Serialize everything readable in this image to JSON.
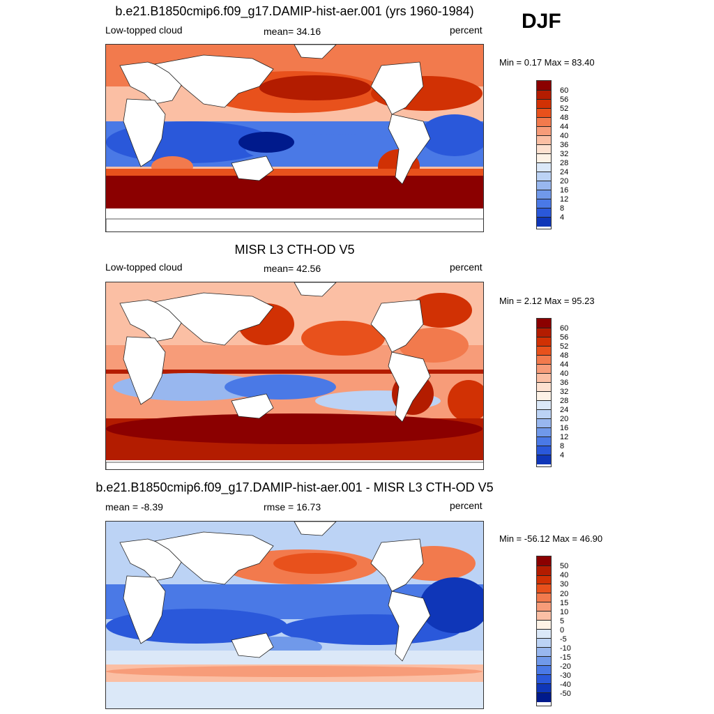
{
  "season": "DJF",
  "colors": {
    "abs_scale": [
      "#8b0000",
      "#b31c00",
      "#d13104",
      "#e8511c",
      "#f27a4d",
      "#f79c79",
      "#fbbfa4",
      "#fde1d0",
      "#fdf2e6",
      "#dbe8f8",
      "#bcd3f5",
      "#98b7ef",
      "#7099ea",
      "#4a79e6",
      "#2a58da",
      "#0f36b8",
      "#001a8c",
      "#000a6a"
    ],
    "diff_scale": [
      "#8b0000",
      "#b31c00",
      "#d13104",
      "#e8511c",
      "#f27a4d",
      "#f79c79",
      "#fbbfa4",
      "#fdf2e6",
      "#dbe8f8",
      "#bcd3f5",
      "#98b7ef",
      "#7099ea",
      "#4a79e6",
      "#2a58da",
      "#0f36b8",
      "#001a8c",
      "#000a6a"
    ]
  },
  "panels": [
    {
      "title": "b.e21.B1850cmip6.f09_g17.DAMIP-hist-aer.001 (yrs 1960-1984)",
      "left_label": "Low-topped cloud",
      "center_label": "mean=  34.16",
      "units": "percent",
      "minmax": "Min =   0.17 Max =  83.40",
      "colorbar_labels": [
        "60",
        "56",
        "52",
        "48",
        "44",
        "40",
        "36",
        "32",
        "28",
        "24",
        "20",
        "16",
        "12",
        "8",
        "4"
      ],
      "map_kind": "model"
    },
    {
      "title": "MISR L3 CTH-OD V5",
      "left_label": "Low-topped cloud",
      "center_label": "mean=  42.56",
      "units": "percent",
      "minmax": "Min =   2.12 Max =  95.23",
      "colorbar_labels": [
        "60",
        "56",
        "52",
        "48",
        "44",
        "40",
        "36",
        "32",
        "28",
        "24",
        "20",
        "16",
        "12",
        "8",
        "4"
      ],
      "map_kind": "obs"
    },
    {
      "title": "b.e21.B1850cmip6.f09_g17.DAMIP-hist-aer.001 - MISR L3 CTH-OD V5",
      "left_label": "mean =  -8.39",
      "center_label": "rmse =  16.73",
      "units": "percent",
      "minmax": "Min = -56.12 Max =  46.90",
      "colorbar_labels": [
        "50",
        "40",
        "30",
        "20",
        "15",
        "10",
        "5",
        "0",
        "-5",
        "-10",
        "-15",
        "-20",
        "-30",
        "-40",
        "-50"
      ],
      "map_kind": "diff"
    }
  ]
}
